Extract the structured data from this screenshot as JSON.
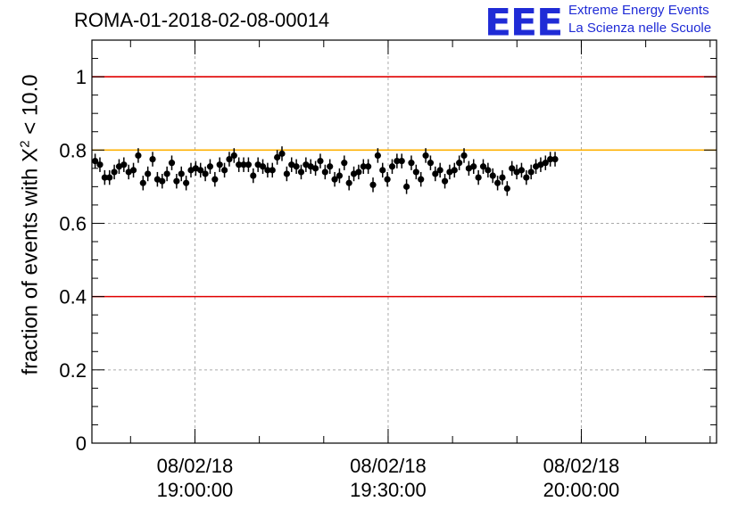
{
  "header": {
    "run_title": "ROMA-01-2018-02-08-00014",
    "logo_text": "EEE",
    "logo_line1": "Extreme Energy Events",
    "logo_line2": "La Scienza nelle Scuole"
  },
  "colors": {
    "logo": "#1f2bd6",
    "limit_red": "#e00000",
    "limit_orange": "#ffb000",
    "points": "#000000",
    "grid": "#aaaaaa"
  },
  "chart_data": {
    "type": "scatter",
    "title": "ROMA-01-2018-02-08-00014",
    "ylabel_prefix": "fraction of events with ",
    "ylabel_symbol": "X",
    "ylabel_sup": "2",
    "ylabel_suffix": " < 10.0",
    "xlabel": "",
    "ylim": [
      0,
      1.1
    ],
    "xlim": [
      "08/02/18 18:44:00",
      "08/02/18 20:21:00"
    ],
    "grid": true,
    "yticks": [
      "0",
      "0.2",
      "0.4",
      "0.6",
      "0.8",
      "1"
    ],
    "xticks": [
      {
        "time": "19:00:00",
        "date": "08/02/18",
        "minute": 16
      },
      {
        "time": "19:30:00",
        "date": "08/02/18",
        "minute": 46
      },
      {
        "time": "20:00:00",
        "date": "08/02/18",
        "minute": 76
      }
    ],
    "reference_lines": [
      {
        "y": 1.0,
        "color": "red"
      },
      {
        "y": 0.4,
        "color": "red"
      },
      {
        "y": 0.8,
        "color": "orange"
      }
    ],
    "series": [
      {
        "x_start_minutes": 0.5,
        "x_step_minutes": 0.744,
        "error": 0.02,
        "values": [
          0.77,
          0.76,
          0.725,
          0.725,
          0.74,
          0.755,
          0.76,
          0.74,
          0.745,
          0.785,
          0.71,
          0.735,
          0.775,
          0.72,
          0.715,
          0.735,
          0.765,
          0.715,
          0.735,
          0.71,
          0.745,
          0.75,
          0.745,
          0.735,
          0.755,
          0.72,
          0.76,
          0.745,
          0.775,
          0.785,
          0.76,
          0.76,
          0.76,
          0.73,
          0.76,
          0.755,
          0.745,
          0.745,
          0.78,
          0.79,
          0.735,
          0.76,
          0.755,
          0.74,
          0.76,
          0.755,
          0.75,
          0.77,
          0.74,
          0.755,
          0.72,
          0.73,
          0.765,
          0.71,
          0.735,
          0.74,
          0.755,
          0.755,
          0.705,
          0.785,
          0.745,
          0.72,
          0.755,
          0.77,
          0.77,
          0.7,
          0.765,
          0.74,
          0.72,
          0.785,
          0.765,
          0.735,
          0.745,
          0.715,
          0.74,
          0.745,
          0.765,
          0.785,
          0.75,
          0.755,
          0.725,
          0.755,
          0.745,
          0.73,
          0.71,
          0.725,
          0.695,
          0.75,
          0.74,
          0.745,
          0.725,
          0.74,
          0.755,
          0.76,
          0.765,
          0.775,
          0.775
        ]
      }
    ]
  }
}
